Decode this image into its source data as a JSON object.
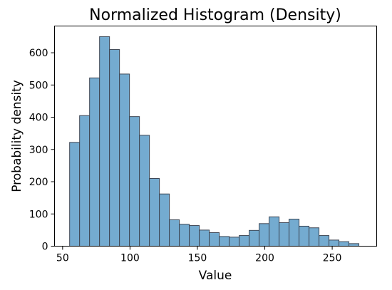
{
  "chart_data": {
    "type": "bar",
    "title": "Normalized Histogram (Density)",
    "xlabel": "Value",
    "ylabel": "Probability density",
    "xlim": [
      44,
      283
    ],
    "ylim": [
      0,
      683
    ],
    "x_ticks": [
      50,
      100,
      150,
      200,
      250
    ],
    "y_ticks": [
      0,
      100,
      200,
      300,
      400,
      500,
      600
    ],
    "bin_width": 7.4,
    "bins": [
      {
        "x0": 55.2,
        "value": 322
      },
      {
        "x0": 62.6,
        "value": 405
      },
      {
        "x0": 70.0,
        "value": 522
      },
      {
        "x0": 77.4,
        "value": 650
      },
      {
        "x0": 84.8,
        "value": 610
      },
      {
        "x0": 92.2,
        "value": 534
      },
      {
        "x0": 99.6,
        "value": 402
      },
      {
        "x0": 107.0,
        "value": 344
      },
      {
        "x0": 114.4,
        "value": 210
      },
      {
        "x0": 121.8,
        "value": 162
      },
      {
        "x0": 129.2,
        "value": 82
      },
      {
        "x0": 136.6,
        "value": 68
      },
      {
        "x0": 144.0,
        "value": 64
      },
      {
        "x0": 151.4,
        "value": 50
      },
      {
        "x0": 158.8,
        "value": 42
      },
      {
        "x0": 166.2,
        "value": 30
      },
      {
        "x0": 173.6,
        "value": 28
      },
      {
        "x0": 181.0,
        "value": 33
      },
      {
        "x0": 188.4,
        "value": 49
      },
      {
        "x0": 195.8,
        "value": 70
      },
      {
        "x0": 203.2,
        "value": 91
      },
      {
        "x0": 210.6,
        "value": 73
      },
      {
        "x0": 218.0,
        "value": 84
      },
      {
        "x0": 225.4,
        "value": 62
      },
      {
        "x0": 232.8,
        "value": 57
      },
      {
        "x0": 240.2,
        "value": 33
      },
      {
        "x0": 247.6,
        "value": 19
      },
      {
        "x0": 255.0,
        "value": 14
      },
      {
        "x0": 262.4,
        "value": 8
      }
    ],
    "grid": false,
    "legend": "none",
    "colors": {
      "bar_fill": "#74abd0",
      "bar_edge": "#3d4654"
    }
  }
}
